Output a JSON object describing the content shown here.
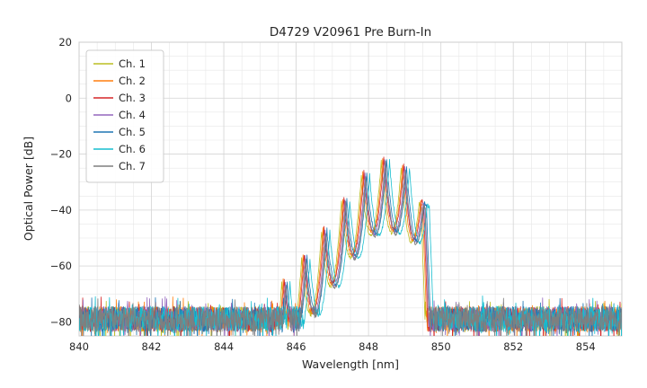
{
  "chart_data": {
    "type": "line",
    "title": "D4729 V20961 Pre Burn-In",
    "xlabel": "Wavelength [nm]",
    "ylabel": "Optical Power [dB]",
    "xlim": [
      840,
      855
    ],
    "ylim": [
      -85,
      20
    ],
    "x_ticks": [
      840,
      842,
      844,
      846,
      848,
      850,
      852,
      854
    ],
    "y_ticks": [
      20,
      0,
      -20,
      -40,
      -60,
      -80
    ],
    "grid": true,
    "legend_position": "upper-left",
    "noise_floor_db": -79,
    "noise_spread_db": 9,
    "mode_spacing_nm": 0.55,
    "mode_depth_db": 25,
    "mode_center_nm": 848.45,
    "spectrum_envelope_nm_db": [
      [
        844.9,
        -80
      ],
      [
        845.35,
        -71
      ],
      [
        845.85,
        -63
      ],
      [
        846.35,
        -55
      ],
      [
        846.85,
        -46
      ],
      [
        847.35,
        -36
      ],
      [
        847.85,
        -27.5
      ],
      [
        848.2,
        -23
      ],
      [
        848.5,
        -21.5
      ],
      [
        848.8,
        -23
      ],
      [
        849.1,
        -24.8
      ],
      [
        849.35,
        -26.5
      ],
      [
        849.5,
        -28.5
      ],
      [
        849.62,
        -52
      ],
      [
        849.72,
        -80
      ]
    ],
    "series": [
      {
        "name": "Ch. 1",
        "color": "#bcbd22",
        "dx_nm": -0.1,
        "d_db": -0.5
      },
      {
        "name": "Ch. 2",
        "color": "#ff7f0e",
        "dx_nm": -0.06,
        "d_db": 0.3
      },
      {
        "name": "Ch. 3",
        "color": "#d62728",
        "dx_nm": -0.03,
        "d_db": 0.8
      },
      {
        "name": "Ch. 4",
        "color": "#9467bd",
        "dx_nm": 0.0,
        "d_db": -0.2
      },
      {
        "name": "Ch. 5",
        "color": "#1f77b4",
        "dx_nm": 0.05,
        "d_db": 0.0
      },
      {
        "name": "Ch. 6",
        "color": "#17becf",
        "dx_nm": 0.13,
        "d_db": -0.6
      },
      {
        "name": "Ch. 7",
        "color": "#7f7f7f",
        "dx_nm": 0.02,
        "d_db": -1.0
      }
    ]
  }
}
